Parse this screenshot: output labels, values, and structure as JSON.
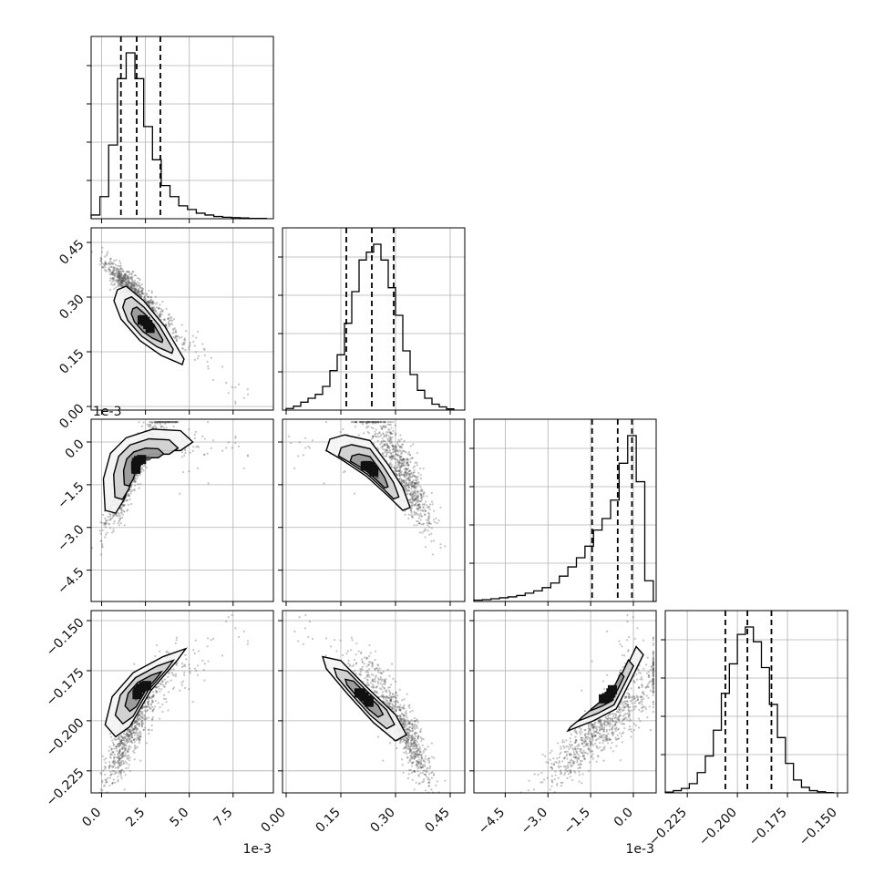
{
  "chart_data": {
    "type": "corner",
    "grid": true,
    "quantiles_shown": [
      0.16,
      0.5,
      0.84
    ],
    "parameters": [
      {
        "scale_note": "1e-3",
        "range": [
          -0.6,
          9.8
        ],
        "ticks": [
          0.0,
          2.5,
          5.0,
          7.5
        ],
        "tick_labels": [
          "0.0",
          "2.5",
          "5.0",
          "7.5"
        ],
        "quantiles": [
          1.1,
          2.0,
          3.35
        ],
        "hist": {
          "bins": [
            -0.6,
            -0.1,
            0.4,
            0.9,
            1.4,
            1.9,
            2.4,
            2.9,
            3.4,
            3.9,
            4.4,
            4.9,
            5.4,
            5.9,
            6.4,
            6.9,
            7.4,
            7.9,
            8.4,
            8.9,
            9.4
          ],
          "counts": [
            1,
            6,
            20,
            38,
            45,
            38,
            25,
            16,
            9,
            6,
            3.5,
            2.5,
            1.5,
            1,
            0.6,
            0.4,
            0.3,
            0.2,
            0.1,
            0.1
          ]
        }
      },
      {
        "scale_note": "",
        "range": [
          -0.01,
          0.49
        ],
        "ticks": [
          0.0,
          0.15,
          0.3,
          0.45
        ],
        "tick_labels": [
          "0.00",
          "0.15",
          "0.30",
          "0.45"
        ],
        "quantiles": [
          0.165,
          0.235,
          0.295
        ],
        "hist": {
          "bins": [
            0.0,
            0.02,
            0.04,
            0.06,
            0.08,
            0.1,
            0.12,
            0.14,
            0.16,
            0.18,
            0.2,
            0.22,
            0.24,
            0.26,
            0.28,
            0.3,
            0.32,
            0.34,
            0.36,
            0.38,
            0.4,
            0.42,
            0.44,
            0.46
          ],
          "counts": [
            0.4,
            1,
            2,
            3,
            4,
            6,
            10,
            14,
            22,
            30,
            38,
            40,
            42,
            38,
            31,
            24,
            15,
            9,
            5,
            3,
            1.5,
            0.8,
            0.3
          ]
        }
      },
      {
        "scale_note": "1e-3",
        "range": [
          -5.6,
          0.8
        ],
        "ticks": [
          -4.5,
          -3.0,
          -1.5,
          0.0
        ],
        "tick_labels": [
          "−4.5",
          "−3.0",
          "−1.5",
          "0.0"
        ],
        "quantiles": [
          -1.45,
          -0.55,
          -0.05
        ],
        "hist": {
          "bins": [
            -5.6,
            -5.3,
            -5.0,
            -4.7,
            -4.4,
            -4.1,
            -3.8,
            -3.5,
            -3.2,
            -2.9,
            -2.6,
            -2.3,
            -2.0,
            -1.7,
            -1.4,
            -1.1,
            -0.8,
            -0.5,
            -0.2,
            0.1,
            0.4,
            0.7
          ],
          "counts": [
            0.3,
            0.4,
            0.6,
            0.8,
            1,
            1.3,
            1.8,
            2.3,
            3,
            4,
            5.5,
            7.5,
            9.5,
            12,
            15.5,
            18,
            22,
            30,
            36,
            26,
            4.5
          ]
        }
      },
      {
        "scale_note": "",
        "range": [
          -0.236,
          -0.145
        ],
        "ticks": [
          -0.225,
          -0.2,
          -0.175,
          -0.15
        ],
        "tick_labels": [
          "−0.225",
          "−0.200",
          "−0.175",
          "−0.150"
        ],
        "quantiles": [
          -0.206,
          -0.195,
          -0.183
        ],
        "hist": {
          "bins": [
            -0.236,
            -0.232,
            -0.228,
            -0.224,
            -0.22,
            -0.216,
            -0.212,
            -0.208,
            -0.204,
            -0.2,
            -0.196,
            -0.192,
            -0.188,
            -0.184,
            -0.18,
            -0.176,
            -0.172,
            -0.168,
            -0.164,
            -0.16,
            -0.156,
            -0.152
          ],
          "counts": [
            0.2,
            0.6,
            1.2,
            2.5,
            5.5,
            10,
            17,
            27,
            35,
            43,
            45,
            41,
            34,
            24,
            15,
            8,
            3.5,
            1.5,
            0.6,
            0.3,
            0.1
          ]
        }
      }
    ],
    "pairs": [
      {
        "row": 1,
        "col": 0,
        "corr": -0.9,
        "contour_path": [
          [
            0.9,
            0.32
          ],
          [
            1.4,
            0.33
          ],
          [
            2.4,
            0.29
          ],
          [
            3.6,
            0.22
          ],
          [
            4.7,
            0.13
          ],
          [
            4.6,
            0.115
          ],
          [
            3.4,
            0.14
          ],
          [
            2.2,
            0.18
          ],
          [
            1.1,
            0.24
          ],
          [
            0.7,
            0.29
          ]
        ]
      },
      {
        "row": 2,
        "col": 0,
        "contour_path": [
          [
            0.2,
            -2.4
          ],
          [
            0.1,
            -1.3
          ],
          [
            0.5,
            -0.4
          ],
          [
            1.4,
            0.15
          ],
          [
            2.9,
            0.45
          ],
          [
            4.5,
            0.4
          ],
          [
            5.2,
            0.0
          ],
          [
            4.5,
            -0.3
          ],
          [
            3.0,
            -0.3
          ],
          [
            1.9,
            -0.9
          ],
          [
            1.3,
            -2.0
          ],
          [
            0.8,
            -2.5
          ]
        ]
      },
      {
        "row": 2,
        "col": 1,
        "contour_path": [
          [
            0.12,
            0.1
          ],
          [
            0.16,
            0.25
          ],
          [
            0.23,
            0.05
          ],
          [
            0.28,
            -0.8
          ],
          [
            0.32,
            -1.6
          ],
          [
            0.34,
            -2.3
          ],
          [
            0.32,
            -2.4
          ],
          [
            0.28,
            -1.9
          ],
          [
            0.22,
            -1.2
          ],
          [
            0.15,
            -0.6
          ],
          [
            0.11,
            -0.3
          ]
        ]
      },
      {
        "row": 3,
        "col": 0,
        "contour_path": [
          [
            0.2,
            -0.202
          ],
          [
            0.6,
            -0.188
          ],
          [
            1.8,
            -0.176
          ],
          [
            3.5,
            -0.168
          ],
          [
            4.8,
            -0.164
          ],
          [
            4.3,
            -0.17
          ],
          [
            2.8,
            -0.185
          ],
          [
            1.6,
            -0.203
          ],
          [
            0.8,
            -0.208
          ]
        ]
      },
      {
        "row": 3,
        "col": 1,
        "contour_path": [
          [
            0.1,
            -0.168
          ],
          [
            0.15,
            -0.17
          ],
          [
            0.22,
            -0.183
          ],
          [
            0.3,
            -0.197
          ],
          [
            0.33,
            -0.207
          ],
          [
            0.3,
            -0.21
          ],
          [
            0.24,
            -0.201
          ],
          [
            0.17,
            -0.187
          ],
          [
            0.11,
            -0.174
          ]
        ]
      },
      {
        "row": 3,
        "col": 2,
        "contour_path": [
          [
            -2.3,
            -0.205
          ],
          [
            -1.4,
            -0.2
          ],
          [
            -0.6,
            -0.194
          ],
          [
            -0.1,
            -0.18
          ],
          [
            0.35,
            -0.167
          ],
          [
            0.1,
            -0.163
          ],
          [
            -0.3,
            -0.175
          ],
          [
            -0.8,
            -0.186
          ],
          [
            -1.6,
            -0.196
          ],
          [
            -2.2,
            -0.203
          ]
        ]
      }
    ]
  }
}
